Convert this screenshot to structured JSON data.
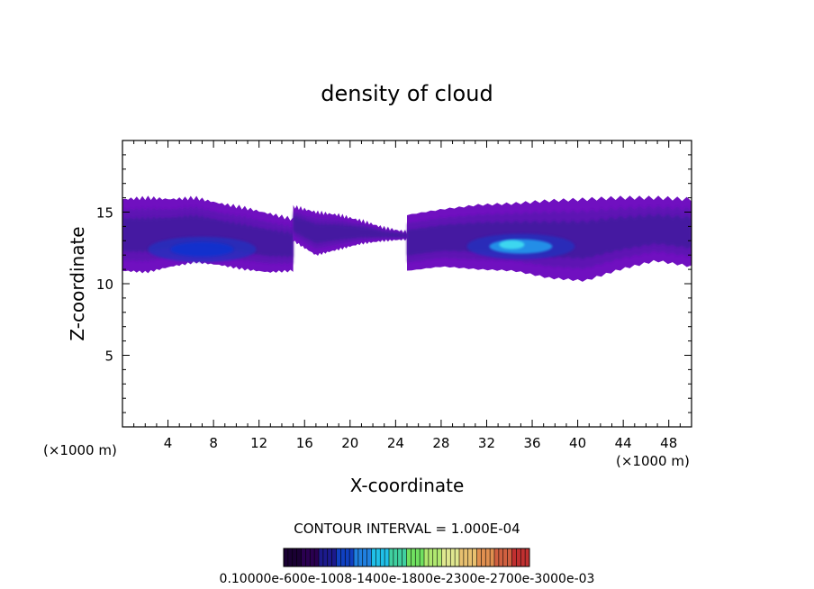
{
  "chart_data": {
    "type": "heatmap",
    "title": "density of cloud",
    "xlabel": "X-coordinate",
    "ylabel": "Z-coordinate",
    "x_unit_label_left": "(×1000 m)",
    "x_unit_label_right": "(×1000 m)",
    "xlim": [
      0,
      50
    ],
    "ylim": [
      0,
      20
    ],
    "x_ticks": [
      4,
      8,
      12,
      16,
      20,
      24,
      28,
      32,
      36,
      40,
      44,
      48
    ],
    "y_ticks": [
      5,
      10,
      15
    ],
    "contour_interval_text": "CONTOUR INTERVAL = 1.000E-04",
    "colorbar": {
      "min": 0.0001,
      "max": 0.003,
      "labels_text": "0.10000e-600e-1008-1400e-1800e-2300e-2700e-3000e-03",
      "colors": [
        "#1a0033",
        "#2a0050",
        "#1c1a8c",
        "#1040c0",
        "#2080e0",
        "#20c0e8",
        "#40d0a0",
        "#70e060",
        "#b0e870",
        "#e0e890",
        "#e8c070",
        "#e09050",
        "#d06040",
        "#c03030"
      ]
    },
    "cloud_regions": [
      {
        "name": "left layer",
        "x": [
          0,
          15
        ],
        "z_top": [
          15.9,
          16.0,
          15.9,
          16.0,
          15.6,
          15.3,
          14.9,
          14.5
        ],
        "z_bottom": [
          10.9,
          10.8,
          11.2,
          11.5,
          11.3,
          11.0,
          10.8,
          10.9
        ],
        "peak": {
          "x": 7.0,
          "z": 12.4,
          "value": 0.0008
        }
      },
      {
        "name": "middle thin layer",
        "x": [
          15,
          25
        ],
        "z_top": [
          15.4,
          15.0,
          14.8,
          14.4,
          13.9,
          13.6
        ],
        "z_bottom": [
          13.0,
          12.0,
          12.4,
          12.8,
          13.0,
          13.1
        ]
      },
      {
        "name": "right layer",
        "x": [
          25,
          50
        ],
        "z_top": [
          14.8,
          15.2,
          15.5,
          15.6,
          15.8,
          15.9,
          16.0,
          16.0,
          15.9
        ],
        "z_bottom": [
          10.9,
          11.2,
          11.0,
          10.9,
          10.4,
          10.2,
          11.0,
          11.6,
          11.2
        ],
        "peak": {
          "x": 35.0,
          "z": 12.6,
          "value": 0.0025
        }
      }
    ]
  }
}
